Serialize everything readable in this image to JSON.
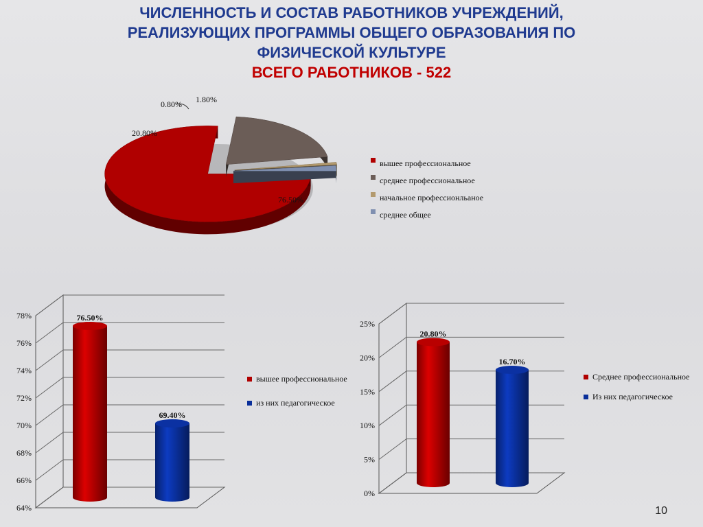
{
  "header": {
    "title_line1": "ЧИСЛЕННОСТЬ И СОСТАВ РАБОТНИКОВ УЧРЕЖДЕНИЙ,",
    "title_line2": "РЕАЛИЗУЮЩИХ ПРОГРАММЫ ОБЩЕГО ОБРАЗОВАНИЯ ПО",
    "title_line3": "ФИЗИЧЕСКОЙ КУЛЬТУРЕ",
    "subtitle": "ВСЕГО  РАБОТНИКОВ   - 522"
  },
  "slide_number": "10",
  "colors": {
    "red": "#b00000",
    "brown": "#6b5d57",
    "tan": "#b39a6e",
    "slate": "#7f8fb0",
    "blue": "#0a2f9a"
  },
  "chart_data": [
    {
      "type": "pie",
      "slices": [
        {
          "label": "вышее профессиональное",
          "value": 76.5,
          "data_label": "76.50%",
          "color": "#b00000"
        },
        {
          "label": "среднее профессиональное",
          "value": 20.8,
          "data_label": "20.80%",
          "color": "#6b5d57"
        },
        {
          "label": "начальное  профессионльаное",
          "value": 0.8,
          "data_label": "0.80%",
          "color": "#b39a6e"
        },
        {
          "label": "среднее общее",
          "value": 1.8,
          "data_label": "1.80%",
          "color": "#7f8fb0"
        }
      ],
      "legend_position": "right"
    },
    {
      "type": "bar",
      "categories": [
        "вышее профессиональное",
        "из  них  педагогическое"
      ],
      "values": [
        76.5,
        69.4
      ],
      "data_labels": [
        "76.50%",
        "69.40%"
      ],
      "colors": [
        "#b00000",
        "#0a2f9a"
      ],
      "ylim": [
        64,
        78
      ],
      "yticks": [
        "64%",
        "66%",
        "68%",
        "70%",
        "72%",
        "74%",
        "76%",
        "78%"
      ],
      "grid": true,
      "legend_position": "right"
    },
    {
      "type": "bar",
      "categories": [
        "Среднее профессиональное",
        "Из них   педагогическое"
      ],
      "values": [
        20.8,
        16.7
      ],
      "data_labels": [
        "20.80%",
        "16.70%"
      ],
      "colors": [
        "#b00000",
        "#0a2f9a"
      ],
      "ylim": [
        0,
        25
      ],
      "yticks": [
        "0%",
        "5%",
        "10%",
        "15%",
        "20%",
        "25%"
      ],
      "grid": true,
      "legend_position": "right"
    }
  ]
}
